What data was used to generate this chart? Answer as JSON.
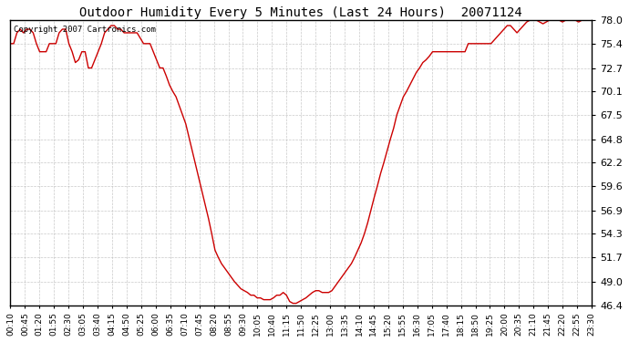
{
  "title": "Outdoor Humidity Every 5 Minutes (Last 24 Hours)  20071124",
  "copyright_text": "Copyright 2007 Cartronics.com",
  "line_color": "#cc0000",
  "background_color": "#ffffff",
  "grid_color": "#bbbbbb",
  "yticks": [
    46.4,
    49.0,
    51.7,
    54.3,
    56.9,
    59.6,
    62.2,
    64.8,
    67.5,
    70.1,
    72.7,
    75.4,
    78.0
  ],
  "ylim": [
    46.4,
    78.0
  ],
  "xtick_labels": [
    "00:10",
    "00:45",
    "01:20",
    "01:55",
    "02:30",
    "03:05",
    "03:40",
    "04:15",
    "04:50",
    "05:25",
    "06:00",
    "06:35",
    "07:10",
    "07:45",
    "08:20",
    "08:55",
    "09:30",
    "10:05",
    "10:40",
    "11:15",
    "11:50",
    "12:25",
    "13:00",
    "13:35",
    "14:10",
    "14:45",
    "15:20",
    "15:55",
    "16:30",
    "17:05",
    "17:40",
    "18:15",
    "18:50",
    "19:25",
    "20:00",
    "20:35",
    "21:10",
    "21:45",
    "22:20",
    "22:55",
    "23:30"
  ],
  "humidity_values": [
    75.4,
    75.4,
    76.6,
    77.0,
    76.6,
    77.0,
    77.0,
    76.6,
    75.4,
    74.5,
    74.5,
    74.5,
    75.4,
    75.4,
    75.4,
    76.6,
    77.0,
    77.0,
    75.4,
    74.5,
    73.3,
    73.6,
    74.5,
    74.5,
    72.7,
    72.7,
    73.6,
    74.5,
    75.4,
    76.6,
    77.0,
    77.4,
    77.4,
    77.0,
    77.0,
    76.6,
    76.6,
    76.6,
    76.6,
    76.6,
    76.0,
    75.4,
    75.4,
    75.4,
    74.5,
    73.6,
    72.7,
    72.7,
    71.8,
    70.8,
    70.1,
    69.5,
    68.5,
    67.5,
    66.5,
    65.0,
    63.5,
    62.0,
    60.5,
    59.0,
    57.5,
    56.0,
    54.3,
    52.5,
    51.7,
    51.0,
    50.5,
    50.0,
    49.5,
    49.0,
    48.6,
    48.2,
    48.0,
    47.8,
    47.5,
    47.5,
    47.2,
    47.2,
    47.0,
    47.0,
    47.0,
    47.2,
    47.5,
    47.5,
    47.8,
    47.5,
    46.8,
    46.6,
    46.6,
    46.8,
    47.0,
    47.2,
    47.5,
    47.8,
    48.0,
    48.0,
    47.8,
    47.8,
    47.8,
    48.0,
    48.5,
    49.0,
    49.5,
    50.0,
    50.5,
    51.0,
    51.7,
    52.5,
    53.3,
    54.3,
    55.5,
    56.9,
    58.3,
    59.6,
    61.0,
    62.2,
    63.5,
    64.8,
    66.0,
    67.5,
    68.5,
    69.5,
    70.1,
    70.8,
    71.5,
    72.2,
    72.7,
    73.3,
    73.6,
    74.0,
    74.5,
    74.5,
    74.5,
    74.5,
    74.5,
    74.5,
    74.5,
    74.5,
    74.5,
    74.5,
    74.5,
    75.4,
    75.4,
    75.4,
    75.4,
    75.4,
    75.4,
    75.4,
    75.4,
    75.8,
    76.2,
    76.6,
    77.0,
    77.4,
    77.4,
    77.0,
    76.6,
    77.0,
    77.4,
    77.8,
    78.0,
    78.2,
    78.0,
    77.8,
    77.6,
    77.8,
    78.0,
    78.2,
    78.2,
    78.0,
    77.8,
    78.0,
    78.2,
    78.2,
    78.0,
    77.8,
    78.0,
    78.0,
    78.0,
    78.2
  ]
}
